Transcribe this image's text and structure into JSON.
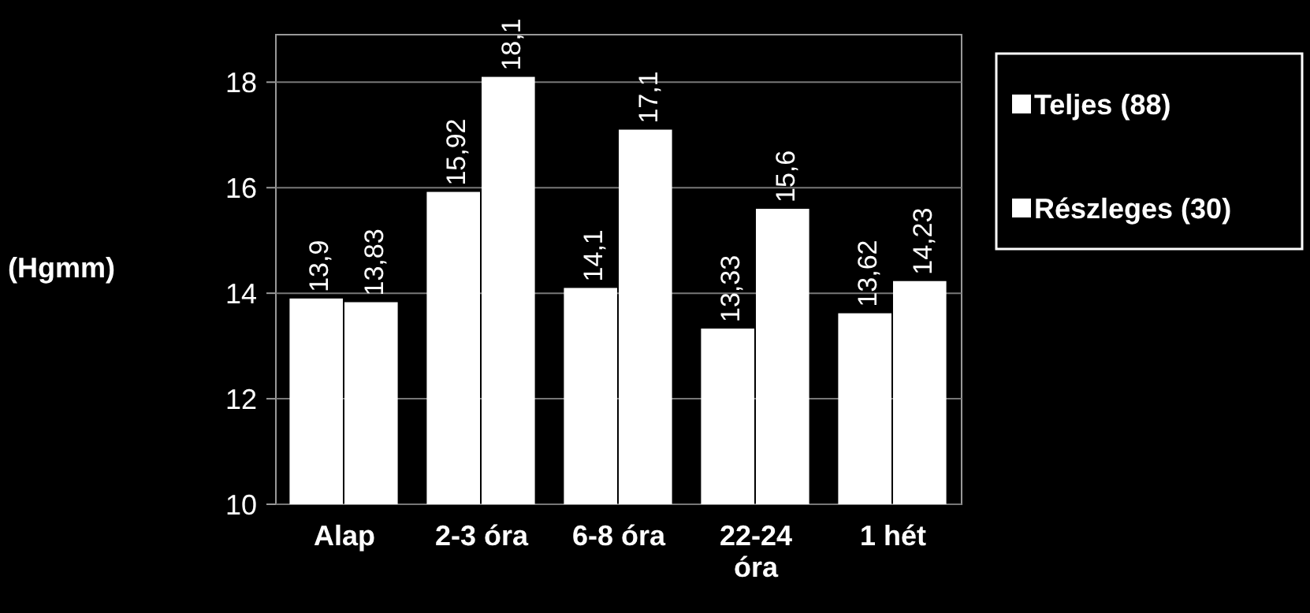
{
  "chart_data": {
    "type": "bar",
    "ylabel": "(Hgmm)",
    "categories": [
      "Alap",
      "2-3 óra",
      "6-8 óra",
      "22-24 óra",
      "1 hét"
    ],
    "series": [
      {
        "name": "Teljes (88)",
        "color": "#ffffff",
        "values": [
          13.9,
          15.92,
          14.1,
          13.33,
          13.62
        ],
        "value_labels": [
          "13,9",
          "15,92",
          "14,1",
          "13,33",
          "13,62"
        ]
      },
      {
        "name": "Részleges (30)",
        "color": "#ffffff",
        "values": [
          13.83,
          18.1,
          17.1,
          15.6,
          14.23
        ],
        "value_labels": [
          "13,83",
          "18,1",
          "17,1",
          "15,6",
          "14,23"
        ]
      }
    ],
    "ylim": [
      10,
      18.9
    ],
    "yticks": [
      10,
      12,
      14,
      16,
      18
    ],
    "grid": "y",
    "legend": "right"
  }
}
